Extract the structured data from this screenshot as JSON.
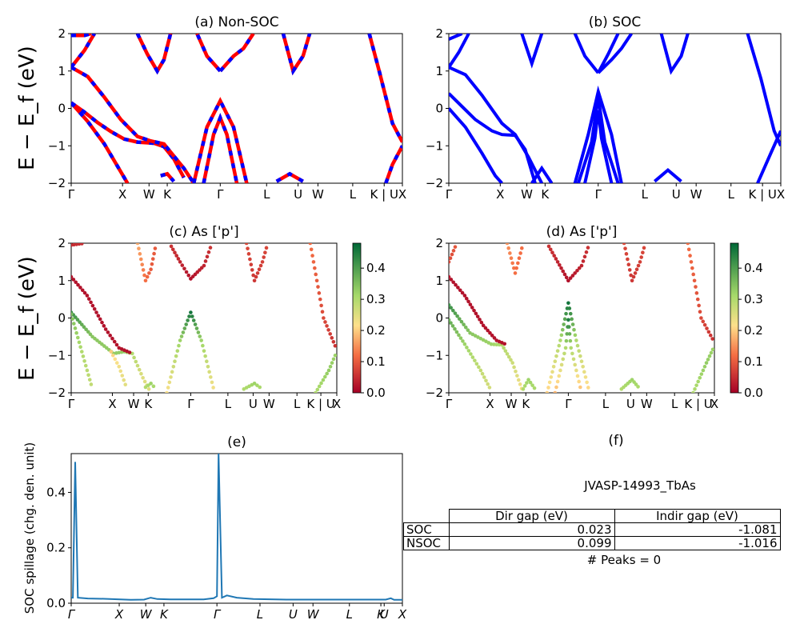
{
  "figure": {
    "ylabel_band": "E − E_f (eV)",
    "kpath_labels": [
      "Γ",
      "X",
      "W",
      "K",
      "Γ",
      "L",
      "U",
      "W",
      "L",
      "K | U",
      "X"
    ],
    "kpath_labels_proj": [
      "Γ",
      "X",
      "W",
      "K",
      "Γ",
      "L",
      "U",
      "W",
      "L",
      "K | U",
      "X"
    ],
    "spillage_labels": [
      "Γ",
      "X",
      "W",
      "K",
      "Γ",
      "L",
      "U",
      "W",
      "L",
      "K",
      "U",
      "X"
    ]
  },
  "panel_f": {
    "title": "(f)",
    "material": "JVASP-14993_TbAs",
    "table": {
      "headers": [
        "Dir gap (eV)",
        "Indir gap (eV)"
      ],
      "rows": [
        {
          "label": "SOC",
          "dir": "0.023",
          "indir": "-1.081"
        },
        {
          "label": "NSOC",
          "dir": "0.099",
          "indir": "-1.016"
        }
      ]
    },
    "peaks_text": "# Peaks = 0"
  },
  "chart_data": [
    {
      "type": "line",
      "title": "(a) Non-SOC",
      "ylabel": "E − E_f (eV)",
      "ylim": [
        -2,
        2
      ],
      "yticks": [
        -2,
        -1,
        0,
        1,
        2
      ],
      "xticks": [
        "Γ",
        "X",
        "W",
        "K",
        "Γ",
        "L",
        "U",
        "W",
        "L",
        "K | U",
        "X"
      ],
      "colors": [
        "#ff0000",
        "#0000ff"
      ],
      "series": [
        {
          "values": [
            [
              0,
              0.15
            ],
            [
              0.04,
              -0.1
            ],
            [
              0.08,
              -0.38
            ],
            [
              0.12,
              -0.62
            ],
            [
              0.16,
              -0.82
            ],
            [
              0.2,
              -0.9
            ],
            [
              0.25,
              -0.93
            ],
            [
              0.28,
              -1.02
            ],
            [
              0.31,
              -1.35
            ],
            [
              0.34,
              -1.85
            ]
          ]
        },
        {
          "values": [
            [
              0,
              0.15
            ],
            [
              0.05,
              -0.35
            ],
            [
              0.1,
              -0.95
            ],
            [
              0.14,
              -1.55
            ],
            [
              0.17,
              -2.0
            ]
          ]
        },
        {
          "values": [
            [
              0,
              1.1
            ],
            [
              0.05,
              0.85
            ],
            [
              0.1,
              0.3
            ],
            [
              0.15,
              -0.3
            ],
            [
              0.2,
              -0.75
            ],
            [
              0.24,
              -0.87
            ],
            [
              0.28,
              -0.95
            ],
            [
              0.34,
              -1.6
            ],
            [
              0.37,
              -2.0
            ]
          ]
        },
        {
          "values": [
            [
              0,
              1.1
            ],
            [
              0.04,
              1.55
            ],
            [
              0.07,
              2.0
            ]
          ]
        },
        {
          "values": [
            [
              0,
              1.95
            ],
            [
              0.04,
              1.95
            ],
            [
              0.06,
              2.0
            ]
          ]
        },
        {
          "values": [
            [
              0.2,
              2.0
            ],
            [
              0.23,
              1.45
            ],
            [
              0.26,
              1.0
            ],
            [
              0.28,
              1.3
            ],
            [
              0.3,
              2.0
            ]
          ]
        },
        {
          "values": [
            [
              0.27,
              -1.8
            ],
            [
              0.29,
              -1.75
            ],
            [
              0.31,
              -1.95
            ]
          ]
        },
        {
          "values": [
            [
              0.37,
              -2.0
            ],
            [
              0.41,
              -0.5
            ],
            [
              0.45,
              0.2
            ],
            [
              0.49,
              -0.5
            ],
            [
              0.53,
              -2.0
            ]
          ]
        },
        {
          "values": [
            [
              0.4,
              -2.0
            ],
            [
              0.43,
              -0.7
            ],
            [
              0.45,
              -0.25
            ],
            [
              0.47,
              -0.7
            ],
            [
              0.5,
              -2.0
            ]
          ]
        },
        {
          "values": [
            [
              0.45,
              1.0
            ],
            [
              0.49,
              1.4
            ],
            [
              0.52,
              1.6
            ],
            [
              0.55,
              2.0
            ]
          ]
        },
        {
          "values": [
            [
              0.45,
              1.0
            ],
            [
              0.41,
              1.4
            ],
            [
              0.38,
              2.0
            ]
          ]
        },
        {
          "values": [
            [
              0.64,
              2.0
            ],
            [
              0.67,
              1.0
            ],
            [
              0.7,
              1.4
            ],
            [
              0.72,
              2.0
            ]
          ]
        },
        {
          "values": [
            [
              0.62,
              -1.95
            ],
            [
              0.66,
              -1.75
            ],
            [
              0.7,
              -1.95
            ]
          ]
        },
        {
          "values": [
            [
              0.9,
              2.0
            ],
            [
              0.93,
              1.0
            ],
            [
              0.97,
              -0.4
            ],
            [
              1.0,
              -0.9
            ]
          ]
        },
        {
          "values": [
            [
              0.95,
              -2.0
            ],
            [
              0.97,
              -1.5
            ],
            [
              1.0,
              -1.0
            ]
          ]
        }
      ]
    },
    {
      "type": "line",
      "title": "(b) SOC",
      "ylim": [
        -2,
        2
      ],
      "yticks": [
        -2,
        -1,
        0,
        1,
        2
      ],
      "xticks": [
        "Γ",
        "X",
        "W",
        "K",
        "Γ",
        "L",
        "U",
        "W",
        "L",
        "K | U",
        "X"
      ],
      "colors": [
        "#0000ff"
      ],
      "series": [
        {
          "values": [
            [
              0,
              0.4
            ],
            [
              0.04,
              0.05
            ],
            [
              0.08,
              -0.3
            ],
            [
              0.13,
              -0.6
            ],
            [
              0.16,
              -0.7
            ],
            [
              0.2,
              -0.72
            ],
            [
              0.23,
              -1.1
            ],
            [
              0.26,
              -2.0
            ]
          ]
        },
        {
          "values": [
            [
              0,
              0.0
            ],
            [
              0.05,
              -0.5
            ],
            [
              0.1,
              -1.2
            ],
            [
              0.14,
              -1.8
            ],
            [
              0.16,
              -2.0
            ]
          ]
        },
        {
          "values": [
            [
              0,
              1.1
            ],
            [
              0.05,
              0.9
            ],
            [
              0.1,
              0.35
            ],
            [
              0.16,
              -0.4
            ],
            [
              0.2,
              -0.7
            ],
            [
              0.24,
              -1.3
            ],
            [
              0.28,
              -2.0
            ]
          ]
        },
        {
          "values": [
            [
              0,
              1.1
            ],
            [
              0.03,
              1.5
            ],
            [
              0.06,
              2.0
            ]
          ]
        },
        {
          "values": [
            [
              0,
              1.85
            ],
            [
              0.04,
              2.0
            ]
          ]
        },
        {
          "values": [
            [
              0.22,
              2.0
            ],
            [
              0.25,
              1.2
            ],
            [
              0.28,
              2.0
            ]
          ]
        },
        {
          "values": [
            [
              0.25,
              -2.0
            ],
            [
              0.28,
              -1.6
            ],
            [
              0.31,
              -2.0
            ]
          ]
        },
        {
          "values": [
            [
              0.38,
              -2.0
            ],
            [
              0.42,
              -0.7
            ],
            [
              0.45,
              0.45
            ],
            [
              0.49,
              -0.7
            ],
            [
              0.52,
              -2.0
            ]
          ]
        },
        {
          "values": [
            [
              0.39,
              -2.0
            ],
            [
              0.43,
              -0.9
            ],
            [
              0.45,
              0.3
            ],
            [
              0.47,
              -0.9
            ],
            [
              0.51,
              -2.0
            ]
          ]
        },
        {
          "values": [
            [
              0.41,
              -2.0
            ],
            [
              0.44,
              -0.8
            ],
            [
              0.45,
              -0.05
            ],
            [
              0.46,
              -0.8
            ],
            [
              0.49,
              -2.0
            ]
          ]
        },
        {
          "values": [
            [
              0.45,
              0.95
            ],
            [
              0.49,
              1.3
            ],
            [
              0.52,
              1.6
            ],
            [
              0.55,
              2.0
            ]
          ]
        },
        {
          "values": [
            [
              0.45,
              0.95
            ],
            [
              0.48,
              1.45
            ],
            [
              0.51,
              2.0
            ]
          ]
        },
        {
          "values": [
            [
              0.45,
              0.95
            ],
            [
              0.41,
              1.4
            ],
            [
              0.38,
              2.0
            ]
          ]
        },
        {
          "values": [
            [
              0.64,
              2.0
            ],
            [
              0.67,
              1.0
            ],
            [
              0.7,
              1.4
            ],
            [
              0.72,
              2.0
            ]
          ]
        },
        {
          "values": [
            [
              0.62,
              -1.95
            ],
            [
              0.66,
              -1.65
            ],
            [
              0.7,
              -1.95
            ]
          ]
        },
        {
          "values": [
            [
              0.9,
              2.0
            ],
            [
              0.94,
              0.8
            ],
            [
              0.98,
              -0.6
            ],
            [
              1.0,
              -1.0
            ]
          ]
        },
        {
          "values": [
            [
              0.93,
              -2.0
            ],
            [
              0.97,
              -1.2
            ],
            [
              1.0,
              -0.6
            ]
          ]
        }
      ]
    },
    {
      "type": "scatter",
      "title": "(c)  As ['p']",
      "ylabel": "E − E_f (eV)",
      "ylim": [
        -2,
        2
      ],
      "yticks": [
        -2,
        -1,
        0,
        1,
        2
      ],
      "xticks": [
        "Γ",
        "X",
        "W",
        "K",
        "Γ",
        "L",
        "U",
        "W",
        "L",
        "K | U",
        "X"
      ],
      "colorbar": {
        "min": 0.0,
        "max": 0.48,
        "ticks": [
          0.0,
          0.1,
          0.2,
          0.3,
          0.4
        ],
        "cmap": "RdYlGn"
      }
    },
    {
      "type": "scatter",
      "title": "(d) As ['p']",
      "ylim": [
        -2,
        2
      ],
      "yticks": [
        -2,
        -1,
        0,
        1,
        2
      ],
      "xticks": [
        "Γ",
        "X",
        "W",
        "K",
        "Γ",
        "L",
        "U",
        "W",
        "L",
        "K | U",
        "X"
      ],
      "colorbar": {
        "min": 0.0,
        "max": 0.48,
        "ticks": [
          0.0,
          0.1,
          0.2,
          0.3,
          0.4
        ],
        "cmap": "RdYlGn"
      }
    },
    {
      "type": "line",
      "title": "(e)",
      "ylabel": "SOC spillage (chg. den. unit)",
      "ylim": [
        0,
        0.54
      ],
      "yticks": [
        0.0,
        0.2,
        0.4
      ],
      "xticks": [
        "Γ",
        "X",
        "W",
        "K",
        "Γ",
        "L",
        "U",
        "W",
        "L",
        "K",
        "U",
        "X"
      ],
      "series": [
        {
          "color": "#1f77b4",
          "values": [
            [
              0,
              0.02
            ],
            [
              0.005,
              0.02
            ],
            [
              0.012,
              0.51
            ],
            [
              0.02,
              0.02
            ],
            [
              0.05,
              0.017
            ],
            [
              0.1,
              0.016
            ],
            [
              0.18,
              0.012
            ],
            [
              0.22,
              0.013
            ],
            [
              0.24,
              0.02
            ],
            [
              0.26,
              0.015
            ],
            [
              0.3,
              0.014
            ],
            [
              0.4,
              0.014
            ],
            [
              0.43,
              0.018
            ],
            [
              0.44,
              0.025
            ],
            [
              0.445,
              0.54
            ],
            [
              0.455,
              0.02
            ],
            [
              0.47,
              0.028
            ],
            [
              0.5,
              0.02
            ],
            [
              0.55,
              0.015
            ],
            [
              0.65,
              0.013
            ],
            [
              0.8,
              0.013
            ],
            [
              0.95,
              0.013
            ],
            [
              0.965,
              0.018
            ],
            [
              0.975,
              0.012
            ],
            [
              1.0,
              0.012
            ]
          ]
        }
      ]
    }
  ]
}
